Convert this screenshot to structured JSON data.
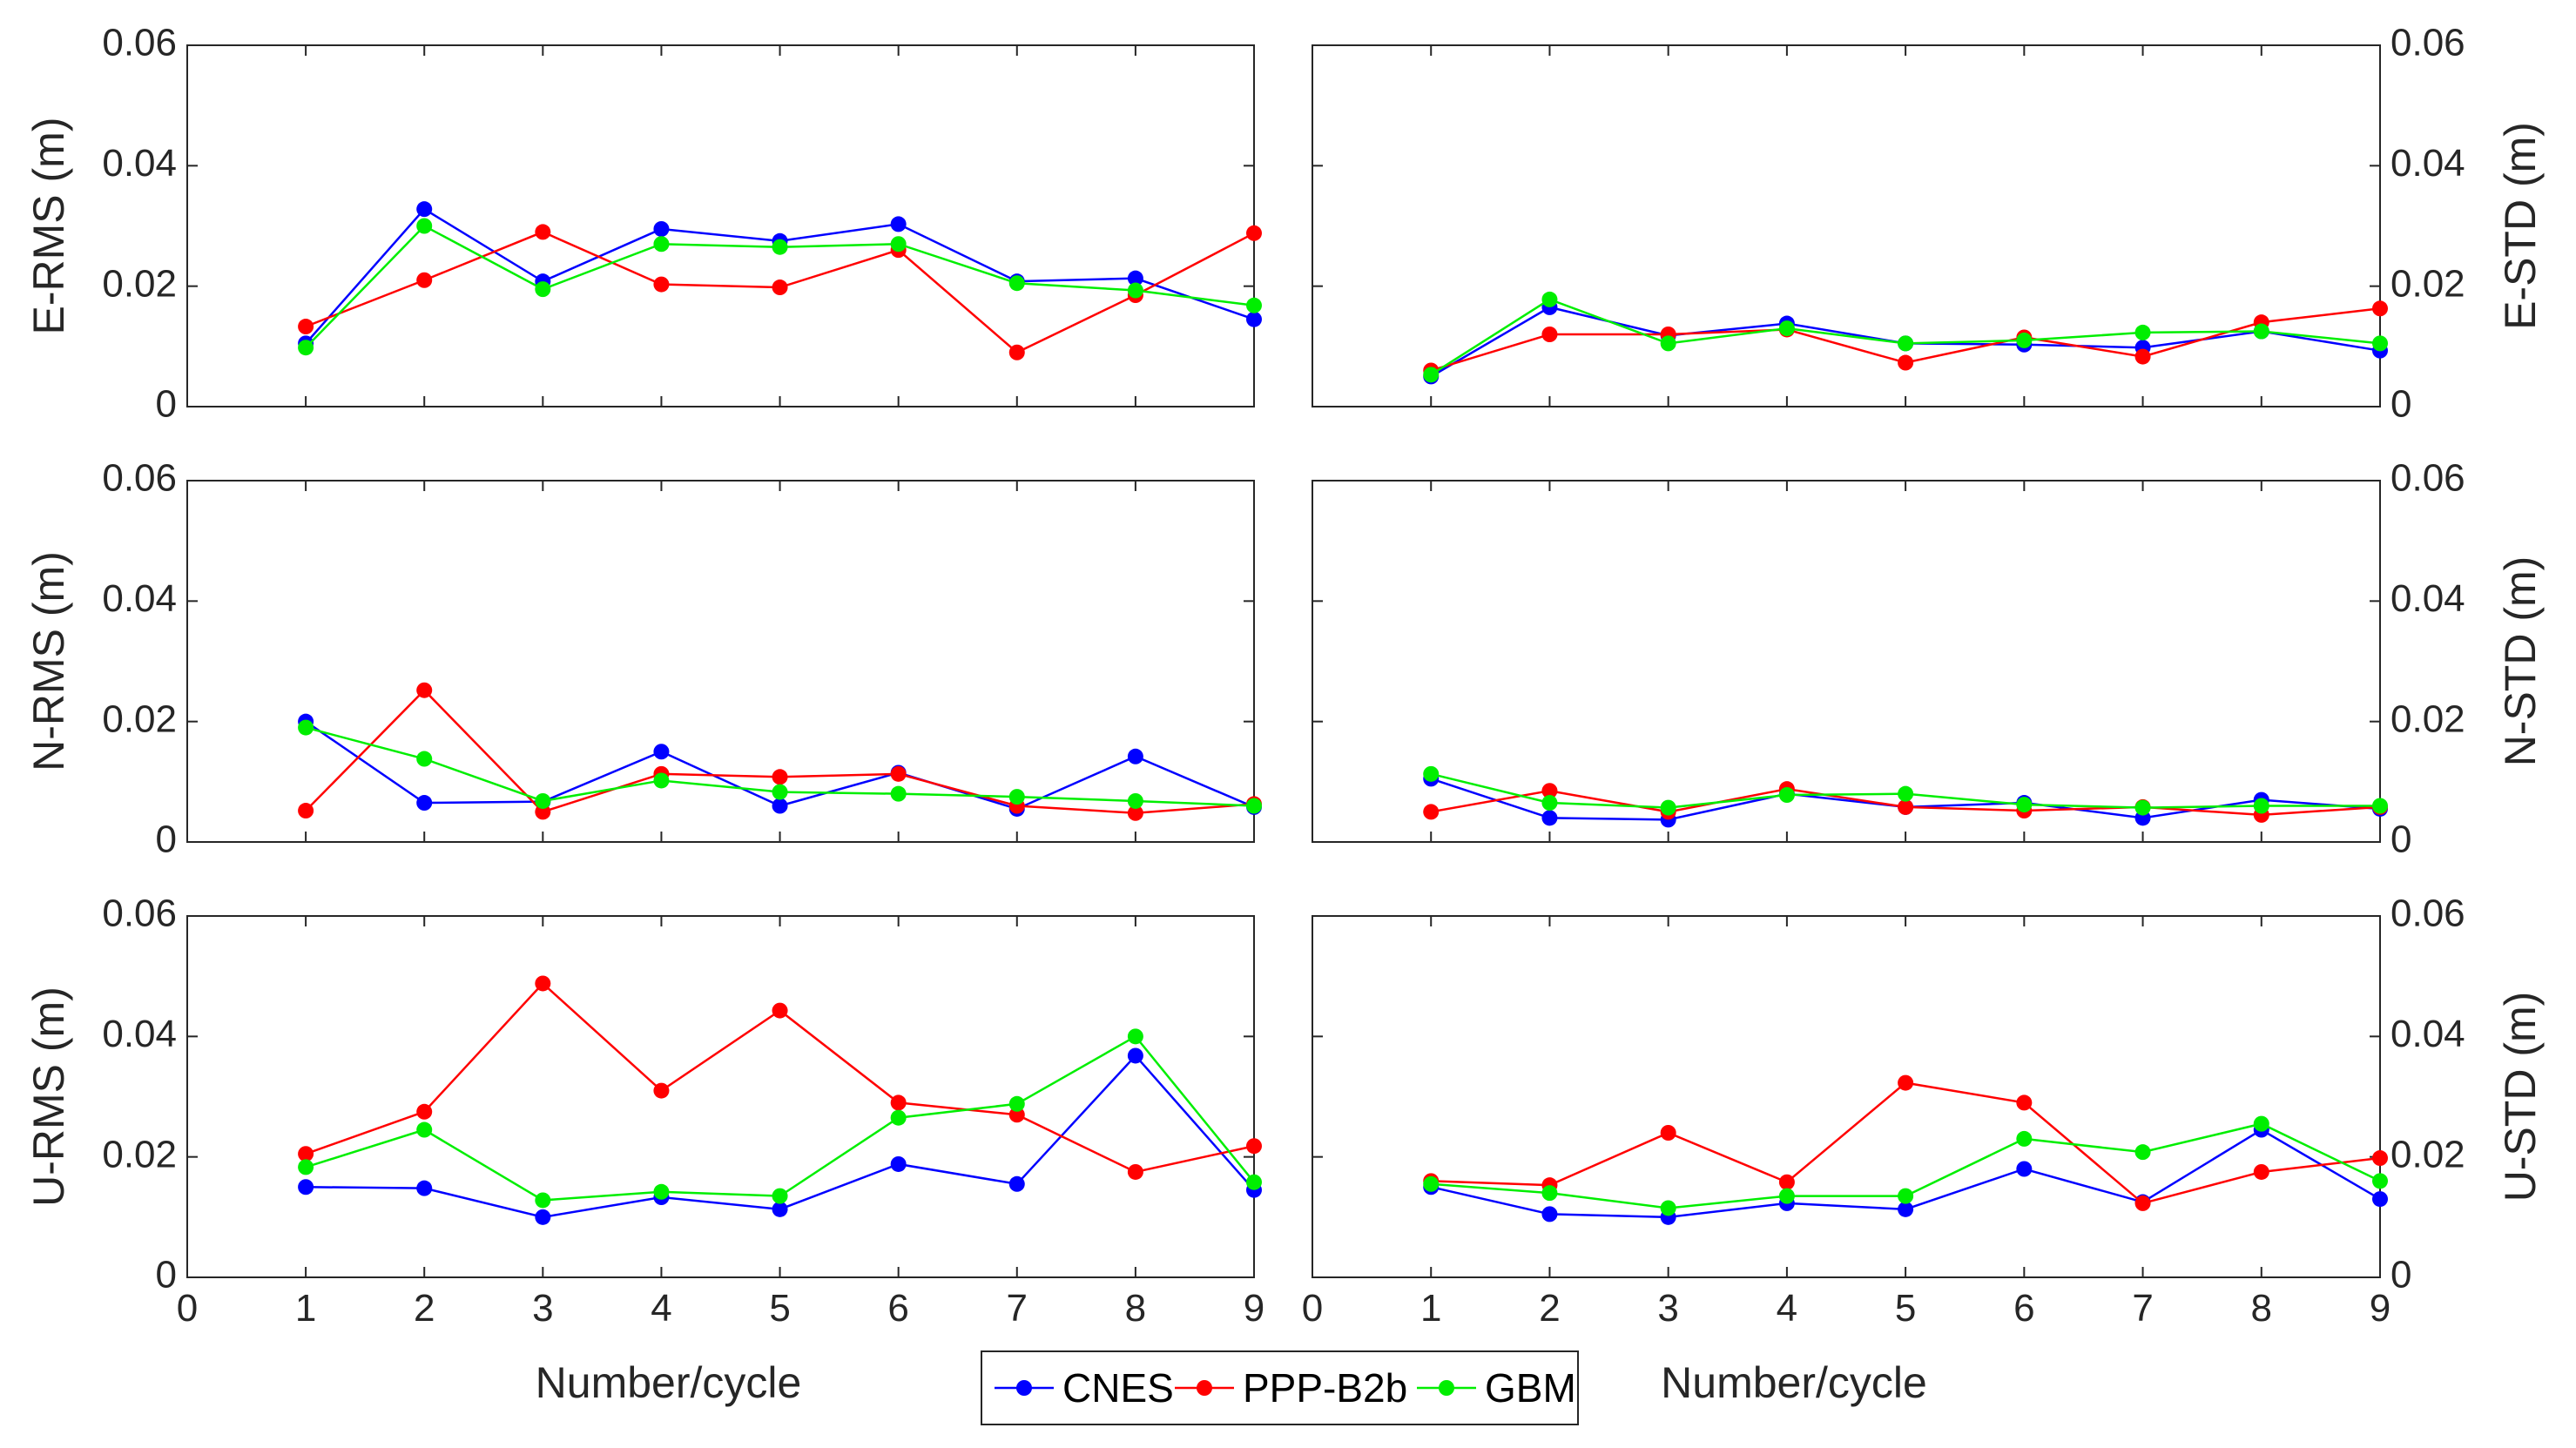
{
  "colors": {
    "CNES": "#0000ff",
    "PPP-B2b": "#ff0000",
    "GBM": "#00ee00",
    "axis": "#262626"
  },
  "legend": [
    "CNES",
    "PPP-B2b",
    "GBM"
  ],
  "chart_data": [
    {
      "type": "line",
      "panel": "E-RMS",
      "ylabel": "E-RMS (m)",
      "xlabel": "",
      "xlim": [
        0,
        9
      ],
      "ylim": [
        0,
        0.06
      ],
      "x": [
        1,
        2,
        3,
        4,
        5,
        6,
        7,
        8,
        9
      ],
      "series": [
        {
          "name": "CNES",
          "values": [
            0.0105,
            0.0328,
            0.0208,
            0.0295,
            0.0275,
            0.0303,
            0.0208,
            0.0213,
            0.0145
          ]
        },
        {
          "name": "PPP-B2b",
          "values": [
            0.0133,
            0.021,
            0.029,
            0.0203,
            0.0198,
            0.026,
            0.009,
            0.0185,
            0.0288
          ]
        },
        {
          "name": "GBM",
          "values": [
            0.0098,
            0.03,
            0.0195,
            0.027,
            0.0265,
            0.027,
            0.0205,
            0.0193,
            0.0168
          ]
        }
      ]
    },
    {
      "type": "line",
      "panel": "E-STD",
      "ylabel": "E-STD (m)",
      "xlabel": "",
      "xlim": [
        0,
        9
      ],
      "ylim": [
        0,
        0.06
      ],
      "x": [
        1,
        2,
        3,
        4,
        5,
        6,
        7,
        8,
        9
      ],
      "series": [
        {
          "name": "CNES",
          "values": [
            0.005,
            0.0165,
            0.0118,
            0.0138,
            0.0105,
            0.0103,
            0.0098,
            0.0125,
            0.0093
          ]
        },
        {
          "name": "PPP-B2b",
          "values": [
            0.006,
            0.012,
            0.012,
            0.0128,
            0.0073,
            0.0115,
            0.0083,
            0.014,
            0.0163
          ]
        },
        {
          "name": "GBM",
          "values": [
            0.0053,
            0.0178,
            0.0105,
            0.013,
            0.0105,
            0.011,
            0.0123,
            0.0125,
            0.0105
          ]
        }
      ]
    },
    {
      "type": "line",
      "panel": "N-RMS",
      "ylabel": "N-RMS (m)",
      "xlabel": "",
      "xlim": [
        0,
        9
      ],
      "ylim": [
        0,
        0.06
      ],
      "x": [
        1,
        2,
        3,
        4,
        5,
        6,
        7,
        8,
        9
      ],
      "series": [
        {
          "name": "CNES",
          "values": [
            0.02,
            0.0065,
            0.0067,
            0.015,
            0.006,
            0.0115,
            0.0055,
            0.0142,
            0.0058
          ]
        },
        {
          "name": "PPP-B2b",
          "values": [
            0.0052,
            0.0252,
            0.005,
            0.0113,
            0.0108,
            0.0113,
            0.006,
            0.0048,
            0.0063
          ]
        },
        {
          "name": "GBM",
          "values": [
            0.019,
            0.0138,
            0.0068,
            0.0102,
            0.0083,
            0.008,
            0.0075,
            0.0068,
            0.006
          ]
        }
      ]
    },
    {
      "type": "line",
      "panel": "N-STD",
      "ylabel": "N-STD (m)",
      "xlabel": "",
      "xlim": [
        0,
        9
      ],
      "ylim": [
        0,
        0.06
      ],
      "x": [
        1,
        2,
        3,
        4,
        5,
        6,
        7,
        8,
        9
      ],
      "series": [
        {
          "name": "CNES",
          "values": [
            0.0105,
            0.004,
            0.0037,
            0.008,
            0.0058,
            0.0065,
            0.004,
            0.007,
            0.0055
          ]
        },
        {
          "name": "PPP-B2b",
          "values": [
            0.005,
            0.0085,
            0.005,
            0.0088,
            0.0058,
            0.0052,
            0.0058,
            0.0045,
            0.0058
          ]
        },
        {
          "name": "GBM",
          "values": [
            0.0113,
            0.0065,
            0.0057,
            0.0078,
            0.008,
            0.0062,
            0.0057,
            0.006,
            0.006
          ]
        }
      ]
    },
    {
      "type": "line",
      "panel": "U-RMS",
      "ylabel": "U-RMS (m)",
      "xlabel": "Number/cycle",
      "xlim": [
        0,
        9
      ],
      "ylim": [
        0,
        0.06
      ],
      "x": [
        1,
        2,
        3,
        4,
        5,
        6,
        7,
        8,
        9
      ],
      "series": [
        {
          "name": "CNES",
          "values": [
            0.015,
            0.0148,
            0.01,
            0.0133,
            0.0113,
            0.0188,
            0.0155,
            0.0368,
            0.0145
          ]
        },
        {
          "name": "PPP-B2b",
          "values": [
            0.0205,
            0.0275,
            0.0488,
            0.031,
            0.0443,
            0.029,
            0.027,
            0.0175,
            0.0218
          ]
        },
        {
          "name": "GBM",
          "values": [
            0.0183,
            0.0245,
            0.0128,
            0.0142,
            0.0135,
            0.0265,
            0.0288,
            0.04,
            0.0158
          ]
        }
      ]
    },
    {
      "type": "line",
      "panel": "U-STD",
      "ylabel": "U-STD (m)",
      "xlabel": "Number/cycle",
      "xlim": [
        0,
        9
      ],
      "ylim": [
        0,
        0.06
      ],
      "x": [
        1,
        2,
        3,
        4,
        5,
        6,
        7,
        8,
        9
      ],
      "series": [
        {
          "name": "CNES",
          "values": [
            0.015,
            0.0105,
            0.01,
            0.0123,
            0.0113,
            0.018,
            0.0125,
            0.0245,
            0.013
          ]
        },
        {
          "name": "PPP-B2b",
          "values": [
            0.016,
            0.0153,
            0.024,
            0.0158,
            0.0323,
            0.029,
            0.0123,
            0.0175,
            0.0198
          ]
        },
        {
          "name": "GBM",
          "values": [
            0.0155,
            0.014,
            0.0115,
            0.0135,
            0.0135,
            0.023,
            0.0208,
            0.0255,
            0.016
          ]
        }
      ]
    }
  ]
}
